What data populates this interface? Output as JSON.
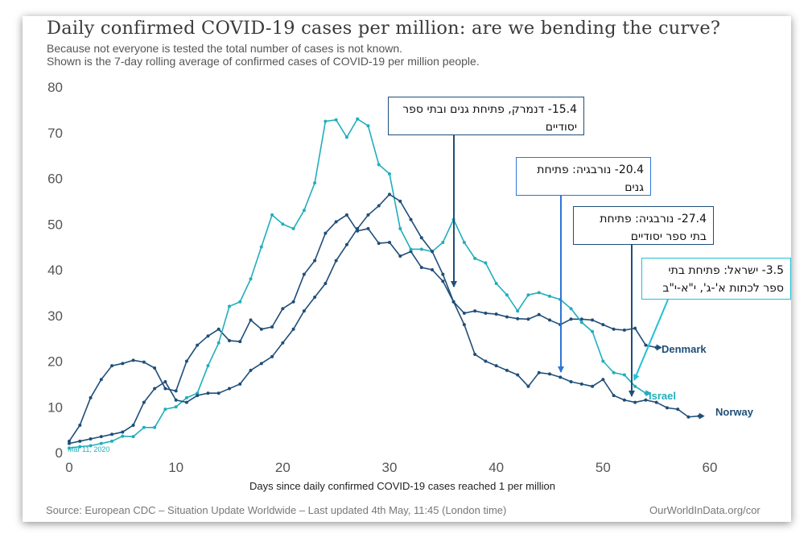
{
  "title": "Daily confirmed COVID-19 cases per million: are we bending the curve?",
  "subtitle_1": "Because not everyone is tested the total number of cases is not known.",
  "subtitle_2": "Shown is the 7-day rolling average of confirmed cases of COVID-19 per million people.",
  "source": "Source: European CDC – Situation Update Worldwide – Last updated 4th May, 11:45 (London time)",
  "credit": "OurWorldInData.org/cor",
  "start_date_label": "Mar 11, 2020",
  "annotations": [
    {
      "text": "15.4- דנמרק, פתיחת גנים ובתי ספר יסודיים",
      "color": "#1f4e79"
    },
    {
      "text": "20.4- נורבגיה: פתיחת גנים",
      "color": "#2f75d6"
    },
    {
      "text": "27.4- נורבגיה: פתיחת בתי ספר יסודיים",
      "color": "#1f4e79"
    },
    {
      "text": "3.5- ישראל: פתיחת בתי ספר לכתות א'-ג', י\"א-י\"ב",
      "color": "#21c0d8"
    }
  ],
  "chart_data": {
    "type": "line",
    "title": "Daily confirmed COVID-19 cases per million: are we bending the curve?",
    "xlabel": "Days since daily confirmed COVID-19 cases reached 1 per million",
    "ylabel": "",
    "xlim": [
      0,
      60
    ],
    "ylim": [
      0,
      80
    ],
    "xticks": [
      0,
      10,
      20,
      30,
      40,
      50,
      60
    ],
    "yticks": [
      0,
      10,
      20,
      30,
      40,
      50,
      60,
      70,
      80
    ],
    "grid": false,
    "series": [
      {
        "name": "Denmark",
        "color": "#1f4e79",
        "points": [
          [
            0,
            2.5
          ],
          [
            1,
            6
          ],
          [
            2,
            12
          ],
          [
            3,
            16
          ],
          [
            4,
            19
          ],
          [
            5,
            19.5
          ],
          [
            6,
            20.2
          ],
          [
            7,
            19.8
          ],
          [
            8,
            18.5
          ],
          [
            9,
            14
          ],
          [
            10,
            13.5
          ],
          [
            11,
            20
          ],
          [
            12,
            23.5
          ],
          [
            13,
            25.5
          ],
          [
            14,
            27
          ],
          [
            15,
            24.5
          ],
          [
            16,
            24.3
          ],
          [
            17,
            29
          ],
          [
            18,
            27
          ],
          [
            19,
            27.5
          ],
          [
            20,
            31.5
          ],
          [
            21,
            33
          ],
          [
            22,
            39
          ],
          [
            23,
            42
          ],
          [
            24,
            48
          ],
          [
            25,
            50.5
          ],
          [
            26,
            52
          ],
          [
            27,
            48.5
          ],
          [
            28,
            49
          ],
          [
            29,
            45.8
          ],
          [
            30,
            46
          ],
          [
            31,
            43
          ],
          [
            32,
            44
          ],
          [
            33,
            40.5
          ],
          [
            34,
            40
          ],
          [
            35,
            37.5
          ],
          [
            36,
            33
          ],
          [
            37,
            30.5
          ],
          [
            38,
            31
          ],
          [
            39,
            30.5
          ],
          [
            40,
            30.3
          ],
          [
            41,
            29.7
          ],
          [
            42,
            29.3
          ],
          [
            43,
            29.2
          ],
          [
            44,
            30.2
          ],
          [
            45,
            29
          ],
          [
            46,
            28
          ],
          [
            47,
            29.2
          ],
          [
            48,
            29.2
          ],
          [
            49,
            29
          ],
          [
            50,
            28
          ],
          [
            51,
            27
          ],
          [
            52,
            26.8
          ],
          [
            53,
            27.2
          ],
          [
            54,
            23.5
          ],
          [
            55,
            23
          ]
        ]
      },
      {
        "name": "Israel",
        "color": "#21aebc",
        "points": [
          [
            0,
            1
          ],
          [
            1,
            1.3
          ],
          [
            2,
            1.5
          ],
          [
            3,
            2
          ],
          [
            4,
            2.5
          ],
          [
            5,
            3.6
          ],
          [
            6,
            3.5
          ],
          [
            7,
            5.5
          ],
          [
            8,
            5.5
          ],
          [
            9,
            9.5
          ],
          [
            10,
            10
          ],
          [
            11,
            12
          ],
          [
            12,
            13
          ],
          [
            13,
            19
          ],
          [
            14,
            24
          ],
          [
            15,
            32
          ],
          [
            16,
            33
          ],
          [
            17,
            38
          ],
          [
            18,
            45
          ],
          [
            19,
            52
          ],
          [
            20,
            50
          ],
          [
            21,
            49
          ],
          [
            22,
            53
          ],
          [
            23,
            59
          ],
          [
            24,
            72.5
          ],
          [
            25,
            72.8
          ],
          [
            26,
            69
          ],
          [
            27,
            73
          ],
          [
            28,
            71.5
          ],
          [
            29,
            63
          ],
          [
            30,
            61
          ],
          [
            31,
            49
          ],
          [
            32,
            44.5
          ],
          [
            33,
            44.5
          ],
          [
            34,
            44
          ],
          [
            35,
            46
          ],
          [
            36,
            51
          ],
          [
            37,
            46
          ],
          [
            38,
            42.5
          ],
          [
            39,
            41.5
          ],
          [
            40,
            37
          ],
          [
            41,
            34.5
          ],
          [
            42,
            31
          ],
          [
            43,
            34.5
          ],
          [
            44,
            35
          ],
          [
            45,
            34.2
          ],
          [
            46,
            33.5
          ],
          [
            47,
            31.5
          ],
          [
            48,
            28.5
          ],
          [
            49,
            26.5
          ],
          [
            50,
            20
          ],
          [
            51,
            17.5
          ],
          [
            52,
            17
          ],
          [
            53,
            14.5
          ],
          [
            54,
            13
          ]
        ]
      },
      {
        "name": "Norway",
        "color": "#1f4e79",
        "points": [
          [
            0,
            2
          ],
          [
            1,
            2.5
          ],
          [
            2,
            3
          ],
          [
            3,
            3.5
          ],
          [
            4,
            4
          ],
          [
            5,
            4.5
          ],
          [
            6,
            6
          ],
          [
            7,
            11
          ],
          [
            8,
            14
          ],
          [
            9,
            15.5
          ],
          [
            10,
            11.5
          ],
          [
            11,
            11
          ],
          [
            12,
            12.5
          ],
          [
            13,
            13
          ],
          [
            14,
            13
          ],
          [
            15,
            14
          ],
          [
            16,
            15
          ],
          [
            17,
            18
          ],
          [
            18,
            19.5
          ],
          [
            19,
            21
          ],
          [
            20,
            24
          ],
          [
            21,
            27
          ],
          [
            22,
            31
          ],
          [
            23,
            34
          ],
          [
            24,
            37
          ],
          [
            25,
            42
          ],
          [
            26,
            45.5
          ],
          [
            27,
            49
          ],
          [
            28,
            52
          ],
          [
            29,
            54
          ],
          [
            30,
            56.5
          ],
          [
            31,
            55
          ],
          [
            32,
            51
          ],
          [
            33,
            47
          ],
          [
            34,
            44
          ],
          [
            35,
            39
          ],
          [
            36,
            33
          ],
          [
            37,
            28
          ],
          [
            38,
            21.5
          ],
          [
            39,
            20
          ],
          [
            40,
            19
          ],
          [
            41,
            18
          ],
          [
            42,
            17
          ],
          [
            43,
            14.5
          ],
          [
            44,
            17.5
          ],
          [
            45,
            17.2
          ],
          [
            46,
            16.5
          ],
          [
            47,
            15.5
          ],
          [
            48,
            15
          ],
          [
            49,
            14.5
          ],
          [
            50,
            16
          ],
          [
            51,
            12.5
          ],
          [
            52,
            11.5
          ],
          [
            53,
            11
          ],
          [
            54,
            11.5
          ],
          [
            55,
            11
          ],
          [
            56,
            9.8
          ],
          [
            57,
            9.5
          ],
          [
            58,
            7.8
          ],
          [
            59,
            8
          ]
        ]
      }
    ]
  }
}
